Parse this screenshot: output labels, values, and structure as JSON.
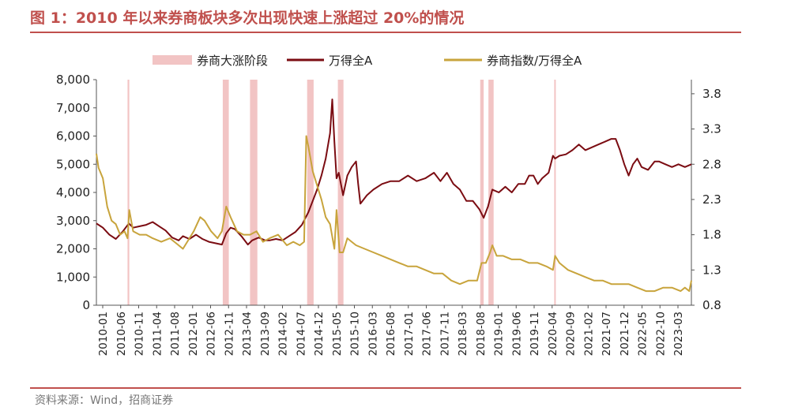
{
  "title": "图 1：2010 年以来券商板块多次出现快速上涨超过 20%的情况",
  "source": "资料来源：Wind，招商证券",
  "chart_data": {
    "type": "line",
    "legend_placement": "top",
    "legend": {
      "band": "券商大涨阶段",
      "series1": "万得全A",
      "series2": "券商指数/万得全A"
    },
    "colors": {
      "band": "#f2c4c4",
      "series1": "#7b0c12",
      "series2": "#c8a43c",
      "accent": "#c0504d"
    },
    "x_range": [
      2010.0,
      2023.75
    ],
    "left_axis": {
      "ylim": [
        0,
        8000
      ],
      "ticks": [
        0,
        1000,
        2000,
        3000,
        4000,
        5000,
        6000,
        7000,
        8000
      ],
      "tick_labels": [
        "0",
        "1,000",
        "2,000",
        "3,000",
        "4,000",
        "5,000",
        "6,000",
        "7,000",
        "8,000"
      ]
    },
    "right_axis": {
      "ylim": [
        0.8,
        4.0
      ],
      "ticks": [
        0.8,
        1.3,
        1.8,
        2.3,
        2.8,
        3.3,
        3.8
      ],
      "tick_labels": [
        "0.8",
        "1.3",
        "1.8",
        "2.3",
        "2.8",
        "3.3",
        "3.8"
      ]
    },
    "x_tick_labels": [
      "2010-01",
      "2010-06",
      "2010-11",
      "2011-04",
      "2011-08",
      "2012-01",
      "2012-06",
      "2012-11",
      "2013-04",
      "2013-09",
      "2014-02",
      "2014-07",
      "2014-12",
      "2015-05",
      "2015-10",
      "2016-03",
      "2016-08",
      "2017-01",
      "2017-06",
      "2017-11",
      "2018-03",
      "2018-08",
      "2019-01",
      "2019-06",
      "2019-11",
      "2020-04",
      "2020-09",
      "2021-02",
      "2021-07",
      "2021-12",
      "2022-05",
      "2022-10",
      "2023-03"
    ],
    "bands": [
      {
        "start": 2010.72,
        "end": 2010.76
      },
      {
        "start": 2012.92,
        "end": 2013.06
      },
      {
        "start": 2013.55,
        "end": 2013.72
      },
      {
        "start": 2014.87,
        "end": 2015.02
      },
      {
        "start": 2015.58,
        "end": 2015.71
      },
      {
        "start": 2018.87,
        "end": 2018.95
      },
      {
        "start": 2019.06,
        "end": 2019.18
      },
      {
        "start": 2020.58,
        "end": 2020.61
      }
    ],
    "series": [
      {
        "name": "万得全A",
        "axis": "left",
        "x": [
          2010.0,
          2010.15,
          2010.3,
          2010.45,
          2010.6,
          2010.75,
          2010.85,
          2011.0,
          2011.15,
          2011.3,
          2011.45,
          2011.6,
          2011.75,
          2011.9,
          2012.0,
          2012.15,
          2012.3,
          2012.45,
          2012.6,
          2012.75,
          2012.9,
          2013.0,
          2013.1,
          2013.2,
          2013.35,
          2013.5,
          2013.6,
          2013.75,
          2013.9,
          2014.0,
          2014.15,
          2014.3,
          2014.45,
          2014.6,
          2014.75,
          2014.9,
          2015.0,
          2015.1,
          2015.2,
          2015.3,
          2015.4,
          2015.45,
          2015.5,
          2015.55,
          2015.6,
          2015.7,
          2015.8,
          2015.9,
          2016.0,
          2016.05,
          2016.1,
          2016.25,
          2016.4,
          2016.6,
          2016.8,
          2017.0,
          2017.2,
          2017.4,
          2017.6,
          2017.8,
          2017.95,
          2018.1,
          2018.25,
          2018.4,
          2018.55,
          2018.7,
          2018.85,
          2018.95,
          2019.05,
          2019.15,
          2019.3,
          2019.45,
          2019.6,
          2019.75,
          2019.9,
          2020.0,
          2020.1,
          2020.2,
          2020.3,
          2020.45,
          2020.55,
          2020.6,
          2020.7,
          2020.85,
          2021.0,
          2021.15,
          2021.3,
          2021.45,
          2021.6,
          2021.75,
          2021.9,
          2022.0,
          2022.1,
          2022.2,
          2022.3,
          2022.4,
          2022.5,
          2022.6,
          2022.75,
          2022.9,
          2023.0,
          2023.15,
          2023.3,
          2023.45,
          2023.6,
          2023.75
        ],
        "values": [
          2900,
          2750,
          2500,
          2350,
          2600,
          2900,
          2750,
          2800,
          2850,
          2950,
          2800,
          2650,
          2400,
          2300,
          2450,
          2350,
          2500,
          2350,
          2250,
          2200,
          2150,
          2550,
          2750,
          2700,
          2450,
          2150,
          2300,
          2400,
          2300,
          2300,
          2350,
          2300,
          2450,
          2600,
          2850,
          3300,
          3700,
          4100,
          4600,
          5200,
          6100,
          7300,
          5800,
          4500,
          4700,
          3900,
          4600,
          4900,
          5100,
          4300,
          3600,
          3900,
          4100,
          4300,
          4400,
          4400,
          4600,
          4400,
          4500,
          4700,
          4400,
          4700,
          4300,
          4100,
          3700,
          3700,
          3400,
          3100,
          3500,
          4100,
          4000,
          4200,
          4000,
          4300,
          4300,
          4600,
          4600,
          4300,
          4500,
          4700,
          5300,
          5200,
          5300,
          5350,
          5500,
          5700,
          5500,
          5600,
          5700,
          5800,
          5900,
          5900,
          5500,
          5000,
          4600,
          5000,
          5200,
          4900,
          4800,
          5100,
          5100,
          5000,
          4900,
          5000,
          4900,
          5000
        ]
      },
      {
        "name": "券商指数/万得全A",
        "axis": "right",
        "x": [
          2010.0,
          2010.05,
          2010.15,
          2010.25,
          2010.35,
          2010.45,
          2010.55,
          2010.65,
          2010.72,
          2010.76,
          2010.85,
          2011.0,
          2011.15,
          2011.3,
          2011.5,
          2011.7,
          2011.9,
          2012.0,
          2012.1,
          2012.25,
          2012.4,
          2012.5,
          2012.65,
          2012.8,
          2012.9,
          2013.0,
          2013.1,
          2013.25,
          2013.4,
          2013.55,
          2013.7,
          2013.85,
          2014.0,
          2014.2,
          2014.4,
          2014.55,
          2014.7,
          2014.8,
          2014.85,
          2014.9,
          2015.0,
          2015.1,
          2015.2,
          2015.3,
          2015.4,
          2015.5,
          2015.55,
          2015.62,
          2015.7,
          2015.8,
          2015.9,
          2016.0,
          2016.2,
          2016.4,
          2016.6,
          2016.8,
          2017.0,
          2017.2,
          2017.4,
          2017.6,
          2017.8,
          2018.0,
          2018.2,
          2018.4,
          2018.6,
          2018.8,
          2018.9,
          2019.0,
          2019.1,
          2019.15,
          2019.25,
          2019.4,
          2019.6,
          2019.8,
          2020.0,
          2020.2,
          2020.4,
          2020.55,
          2020.6,
          2020.7,
          2020.9,
          2021.1,
          2021.3,
          2021.5,
          2021.7,
          2021.9,
          2022.1,
          2022.3,
          2022.5,
          2022.7,
          2022.9,
          2023.1,
          2023.3,
          2023.5,
          2023.6,
          2023.7,
          2023.75
        ],
        "values": [
          2.95,
          2.75,
          2.6,
          2.2,
          2.0,
          1.95,
          1.8,
          1.85,
          1.75,
          2.15,
          1.85,
          1.8,
          1.8,
          1.75,
          1.7,
          1.75,
          1.65,
          1.6,
          1.7,
          1.85,
          2.05,
          2.0,
          1.85,
          1.75,
          1.85,
          2.2,
          2.05,
          1.85,
          1.8,
          1.8,
          1.85,
          1.7,
          1.75,
          1.8,
          1.65,
          1.7,
          1.65,
          1.7,
          3.2,
          3.05,
          2.7,
          2.5,
          2.3,
          2.05,
          1.95,
          1.6,
          2.15,
          1.55,
          1.55,
          1.75,
          1.7,
          1.65,
          1.6,
          1.55,
          1.5,
          1.45,
          1.4,
          1.35,
          1.35,
          1.3,
          1.25,
          1.25,
          1.15,
          1.1,
          1.15,
          1.15,
          1.4,
          1.4,
          1.55,
          1.65,
          1.5,
          1.5,
          1.45,
          1.45,
          1.4,
          1.4,
          1.35,
          1.3,
          1.5,
          1.4,
          1.3,
          1.25,
          1.2,
          1.15,
          1.15,
          1.1,
          1.1,
          1.1,
          1.05,
          1.0,
          1.0,
          1.05,
          1.05,
          1.0,
          1.05,
          1.0,
          1.15
        ]
      }
    ]
  }
}
